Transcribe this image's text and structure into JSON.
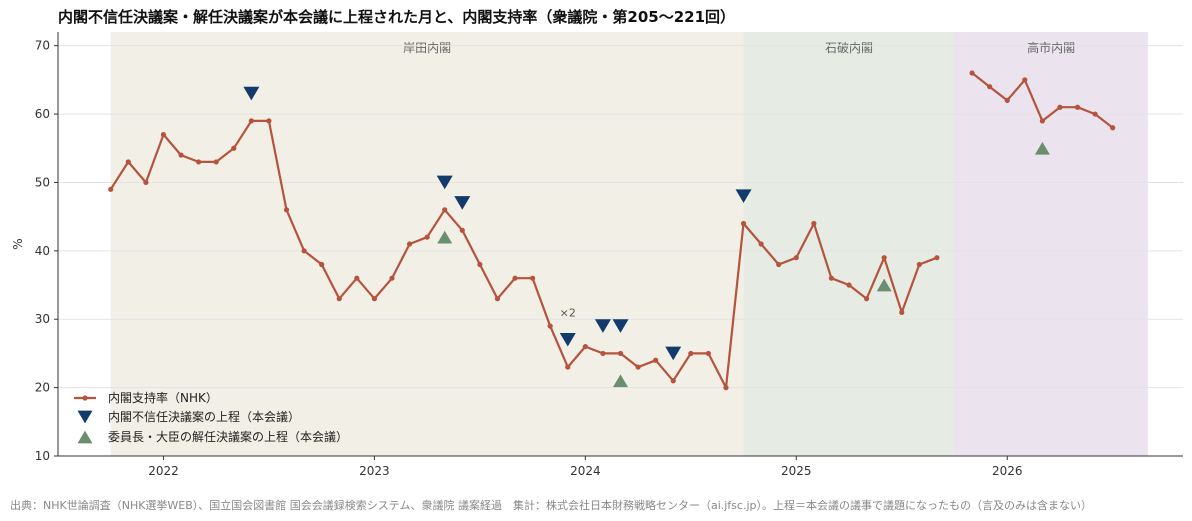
{
  "title": "内閣不信任決議案・解任決議案が本会議に上程された月と、内閣支持率（衆議院・第205〜221回）",
  "source": "出典：NHK世論調査（NHK選挙WEB）、国立国会図書館 国会会議録検索システム、衆議院 議案経過　集計：株式会社日本財務戦略センター（ai.jfsc.jp）。上程＝本会議の議事で議題になったもの（言及のみは含まない）",
  "colors": {
    "line": "#b5533c",
    "no_confidence": "#123a6b",
    "dismissal": "#6b8f6e",
    "kishida_bg": "#f2efe6",
    "ishiba_bg": "#e6ece4",
    "takaichi_bg": "#ebe4ef"
  },
  "chart_data": {
    "type": "line",
    "ylabel": "%",
    "ylim": [
      10,
      72
    ],
    "xlim": [
      "2021-07",
      "2026-11"
    ],
    "yticks": [
      10,
      20,
      30,
      40,
      50,
      60,
      70
    ],
    "xticks": [
      "2022",
      "2023",
      "2024",
      "2025",
      "2026"
    ],
    "grid": "horizontal",
    "legend_position": "bottom-left",
    "periods": [
      {
        "label": "岸田内閣",
        "start": "2021-10",
        "end": "2024-10"
      },
      {
        "label": "石破内閣",
        "start": "2024-10",
        "end": "2025-10"
      },
      {
        "label": "高市内閣",
        "start": "2025-10",
        "end": "2026-09"
      }
    ],
    "series": [
      {
        "name": "内閣支持率（NHK）",
        "segments": [
          {
            "x": [
              "2021-10",
              "2021-11",
              "2021-12",
              "2022-01",
              "2022-02",
              "2022-03",
              "2022-04",
              "2022-05",
              "2022-06",
              "2022-07",
              "2022-08",
              "2022-09",
              "2022-10",
              "2022-11",
              "2022-12",
              "2023-01",
              "2023-02",
              "2023-03",
              "2023-04",
              "2023-05",
              "2023-06",
              "2023-07",
              "2023-08",
              "2023-09",
              "2023-10",
              "2023-11",
              "2023-12",
              "2024-01",
              "2024-02",
              "2024-03",
              "2024-04",
              "2024-05",
              "2024-06",
              "2024-07",
              "2024-08",
              "2024-09",
              "2024-10",
              "2024-11",
              "2024-12",
              "2025-01",
              "2025-02",
              "2025-03",
              "2025-04",
              "2025-05",
              "2025-06",
              "2025-07",
              "2025-08",
              "2025-09"
            ],
            "values": [
              49,
              53,
              50,
              57,
              54,
              53,
              53,
              55,
              59,
              59,
              46,
              40,
              38,
              33,
              36,
              33,
              36,
              41,
              42,
              46,
              43,
              38,
              33,
              36,
              36,
              29,
              23,
              26,
              25,
              25,
              23,
              24,
              21,
              25,
              25,
              20,
              44,
              41,
              38,
              39,
              44,
              36,
              35,
              33,
              39,
              31,
              38,
              39
            ]
          },
          {
            "x": [
              "2025-11",
              "2025-12",
              "2026-01",
              "2026-02",
              "2026-03",
              "2026-04",
              "2026-05",
              "2026-06",
              "2026-07"
            ],
            "values": [
              66,
              64,
              62,
              65,
              59,
              61,
              61,
              60,
              58
            ]
          }
        ]
      },
      {
        "name": "内閣不信任決議案の上程（本会議）",
        "marker": "triangle-down",
        "points": [
          {
            "x": "2022-06",
            "y": 63
          },
          {
            "x": "2023-05",
            "y": 50
          },
          {
            "x": "2023-06",
            "y": 47
          },
          {
            "x": "2023-12",
            "y": 27
          },
          {
            "x": "2024-02",
            "y": 29
          },
          {
            "x": "2024-03",
            "y": 29
          },
          {
            "x": "2024-06",
            "y": 25
          },
          {
            "x": "2024-10",
            "y": 48
          }
        ]
      },
      {
        "name": "委員長・大臣の解任決議案の上程（本会議）",
        "marker": "triangle-up",
        "points": [
          {
            "x": "2023-05",
            "y": 42
          },
          {
            "x": "2024-03",
            "y": 21
          },
          {
            "x": "2025-06",
            "y": 35
          },
          {
            "x": "2026-03",
            "y": 55
          }
        ]
      }
    ],
    "annotations": [
      {
        "text": "×2",
        "x": "2023-12",
        "y": 31
      }
    ]
  }
}
